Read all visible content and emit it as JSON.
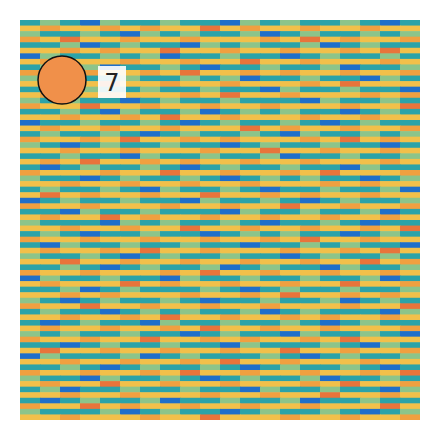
{
  "chart_data": {
    "type": "heatmap",
    "tick_labels": false,
    "grid": false,
    "xlim": [
      0,
      20
    ],
    "ylim": [
      0,
      72
    ],
    "zlim": [
      0,
      5
    ],
    "cells": [
      [
        1,
        2,
        1,
        0,
        2,
        1,
        1,
        2,
        1,
        1,
        0,
        2,
        1,
        2,
        1,
        1,
        2,
        1,
        0,
        1
      ],
      [
        3,
        4,
        3,
        3,
        4,
        3,
        4,
        3,
        3,
        5,
        3,
        4,
        3,
        3,
        4,
        3,
        3,
        4,
        3,
        3
      ],
      [
        2,
        1,
        1,
        2,
        1,
        0,
        2,
        1,
        2,
        1,
        1,
        2,
        0,
        1,
        2,
        1,
        1,
        2,
        1,
        2
      ],
      [
        4,
        3,
        5,
        3,
        3,
        4,
        3,
        3,
        4,
        3,
        3,
        3,
        4,
        3,
        5,
        3,
        4,
        3,
        3,
        4
      ],
      [
        1,
        1,
        2,
        0,
        1,
        2,
        1,
        1,
        0,
        2,
        1,
        2,
        1,
        1,
        2,
        0,
        1,
        2,
        1,
        1
      ],
      [
        3,
        3,
        4,
        3,
        4,
        3,
        3,
        5,
        3,
        3,
        4,
        3,
        3,
        4,
        3,
        3,
        4,
        3,
        5,
        3
      ],
      [
        0,
        2,
        1,
        1,
        2,
        1,
        2,
        0,
        1,
        1,
        2,
        1,
        1,
        0,
        1,
        2,
        1,
        1,
        2,
        1
      ],
      [
        3,
        4,
        3,
        3,
        3,
        4,
        3,
        3,
        4,
        3,
        3,
        5,
        3,
        3,
        4,
        3,
        3,
        3,
        4,
        3
      ],
      [
        1,
        2,
        1,
        2,
        0,
        1,
        1,
        2,
        1,
        0,
        1,
        1,
        2,
        1,
        1,
        2,
        0,
        1,
        1,
        2
      ],
      [
        4,
        3,
        3,
        4,
        3,
        3,
        4,
        3,
        5,
        3,
        3,
        4,
        3,
        4,
        3,
        3,
        4,
        3,
        3,
        4
      ],
      [
        2,
        1,
        0,
        1,
        1,
        2,
        1,
        1,
        2,
        1,
        2,
        0,
        1,
        1,
        2,
        1,
        1,
        0,
        2,
        1
      ],
      [
        3,
        3,
        4,
        3,
        5,
        3,
        3,
        4,
        3,
        3,
        4,
        3,
        3,
        3,
        4,
        3,
        5,
        3,
        3,
        3
      ],
      [
        1,
        0,
        1,
        2,
        1,
        1,
        2,
        1,
        1,
        2,
        1,
        1,
        0,
        2,
        1,
        1,
        2,
        1,
        1,
        0
      ],
      [
        3,
        4,
        3,
        3,
        4,
        3,
        3,
        3,
        4,
        3,
        5,
        3,
        3,
        4,
        3,
        3,
        3,
        4,
        3,
        4
      ],
      [
        2,
        1,
        2,
        1,
        1,
        0,
        1,
        2,
        1,
        1,
        2,
        1,
        1,
        1,
        0,
        2,
        1,
        1,
        2,
        1
      ],
      [
        4,
        3,
        3,
        5,
        3,
        3,
        4,
        3,
        3,
        4,
        3,
        3,
        4,
        3,
        3,
        3,
        4,
        3,
        3,
        5
      ],
      [
        1,
        1,
        2,
        1,
        0,
        2,
        1,
        1,
        2,
        0,
        1,
        2,
        1,
        2,
        1,
        1,
        0,
        1,
        2,
        1
      ],
      [
        3,
        3,
        4,
        3,
        3,
        4,
        3,
        5,
        3,
        3,
        4,
        3,
        3,
        3,
        4,
        3,
        3,
        4,
        3,
        3
      ],
      [
        0,
        1,
        1,
        2,
        1,
        1,
        2,
        1,
        0,
        1,
        2,
        1,
        1,
        2,
        1,
        0,
        1,
        2,
        1,
        1
      ],
      [
        3,
        4,
        3,
        3,
        4,
        3,
        3,
        4,
        3,
        3,
        3,
        5,
        3,
        4,
        3,
        3,
        4,
        3,
        3,
        4
      ],
      [
        1,
        2,
        1,
        1,
        2,
        1,
        0,
        1,
        2,
        1,
        1,
        2,
        1,
        0,
        2,
        1,
        1,
        2,
        1,
        2
      ],
      [
        4,
        3,
        3,
        4,
        3,
        5,
        3,
        3,
        4,
        3,
        4,
        3,
        3,
        3,
        4,
        3,
        5,
        3,
        4,
        3
      ],
      [
        2,
        1,
        0,
        1,
        2,
        1,
        1,
        2,
        1,
        1,
        0,
        1,
        2,
        1,
        1,
        2,
        1,
        1,
        0,
        1
      ],
      [
        3,
        3,
        4,
        3,
        3,
        4,
        3,
        3,
        3,
        4,
        3,
        3,
        5,
        3,
        3,
        4,
        3,
        3,
        4,
        3
      ],
      [
        1,
        1,
        2,
        1,
        1,
        0,
        2,
        1,
        1,
        2,
        1,
        1,
        2,
        0,
        1,
        1,
        2,
        1,
        1,
        2
      ],
      [
        3,
        4,
        3,
        5,
        3,
        3,
        4,
        3,
        4,
        3,
        3,
        4,
        3,
        3,
        4,
        3,
        3,
        3,
        4,
        3
      ],
      [
        1,
        0,
        1,
        2,
        1,
        1,
        2,
        1,
        0,
        1,
        2,
        1,
        1,
        2,
        1,
        1,
        0,
        2,
        1,
        1
      ],
      [
        4,
        3,
        3,
        3,
        4,
        3,
        3,
        5,
        3,
        3,
        4,
        3,
        3,
        4,
        3,
        5,
        3,
        3,
        3,
        4
      ],
      [
        2,
        1,
        1,
        0,
        1,
        2,
        1,
        1,
        2,
        1,
        0,
        1,
        2,
        1,
        2,
        1,
        1,
        0,
        1,
        2
      ],
      [
        3,
        3,
        4,
        3,
        3,
        4,
        3,
        3,
        4,
        3,
        3,
        4,
        3,
        3,
        3,
        4,
        3,
        4,
        3,
        3
      ],
      [
        1,
        2,
        1,
        1,
        2,
        1,
        0,
        2,
        1,
        1,
        2,
        1,
        0,
        1,
        1,
        2,
        1,
        1,
        2,
        0
      ],
      [
        3,
        5,
        3,
        4,
        3,
        3,
        4,
        3,
        3,
        5,
        3,
        3,
        4,
        3,
        4,
        3,
        3,
        4,
        3,
        3
      ],
      [
        0,
        1,
        2,
        1,
        1,
        2,
        1,
        1,
        0,
        2,
        1,
        1,
        2,
        1,
        0,
        1,
        2,
        1,
        1,
        2
      ],
      [
        4,
        3,
        3,
        4,
        3,
        3,
        3,
        4,
        3,
        3,
        4,
        3,
        3,
        5,
        3,
        3,
        4,
        3,
        3,
        4
      ],
      [
        1,
        1,
        0,
        2,
        1,
        1,
        2,
        1,
        1,
        1,
        0,
        2,
        1,
        1,
        2,
        1,
        1,
        2,
        0,
        1
      ],
      [
        3,
        4,
        3,
        3,
        5,
        3,
        4,
        3,
        3,
        4,
        3,
        3,
        4,
        3,
        3,
        4,
        3,
        3,
        4,
        3
      ],
      [
        2,
        1,
        1,
        1,
        0,
        2,
        1,
        2,
        1,
        1,
        2,
        1,
        0,
        1,
        1,
        2,
        1,
        0,
        1,
        1
      ],
      [
        3,
        3,
        4,
        3,
        3,
        4,
        3,
        3,
        5,
        3,
        3,
        4,
        3,
        3,
        4,
        3,
        3,
        4,
        3,
        5
      ],
      [
        1,
        2,
        1,
        0,
        1,
        1,
        2,
        1,
        1,
        0,
        1,
        2,
        1,
        2,
        1,
        1,
        0,
        1,
        2,
        1
      ],
      [
        4,
        3,
        3,
        4,
        3,
        3,
        4,
        3,
        3,
        4,
        3,
        3,
        4,
        3,
        5,
        3,
        3,
        4,
        3,
        3
      ],
      [
        1,
        0,
        2,
        1,
        1,
        2,
        1,
        1,
        2,
        1,
        1,
        0,
        1,
        1,
        2,
        1,
        2,
        1,
        1,
        0
      ],
      [
        3,
        4,
        3,
        3,
        4,
        3,
        5,
        3,
        3,
        4,
        3,
        3,
        3,
        4,
        3,
        3,
        4,
        3,
        5,
        3
      ],
      [
        2,
        1,
        1,
        2,
        1,
        0,
        1,
        2,
        1,
        1,
        2,
        1,
        1,
        0,
        1,
        2,
        1,
        1,
        2,
        1
      ],
      [
        3,
        3,
        5,
        3,
        3,
        4,
        3,
        3,
        4,
        3,
        3,
        4,
        3,
        3,
        4,
        3,
        3,
        5,
        3,
        4
      ],
      [
        1,
        1,
        2,
        1,
        0,
        1,
        2,
        1,
        1,
        2,
        0,
        1,
        2,
        1,
        1,
        0,
        2,
        1,
        1,
        2
      ],
      [
        4,
        3,
        3,
        4,
        3,
        3,
        3,
        4,
        3,
        5,
        3,
        3,
        4,
        3,
        3,
        4,
        3,
        3,
        4,
        3
      ],
      [
        0,
        2,
        1,
        1,
        2,
        1,
        1,
        0,
        2,
        1,
        1,
        2,
        1,
        1,
        2,
        1,
        1,
        2,
        0,
        1
      ],
      [
        3,
        4,
        3,
        3,
        3,
        5,
        3,
        4,
        3,
        3,
        4,
        3,
        3,
        4,
        3,
        3,
        5,
        3,
        3,
        4
      ],
      [
        1,
        1,
        2,
        0,
        1,
        2,
        1,
        1,
        1,
        2,
        1,
        0,
        1,
        2,
        1,
        1,
        2,
        1,
        1,
        2
      ],
      [
        3,
        3,
        4,
        3,
        4,
        3,
        3,
        3,
        4,
        3,
        3,
        4,
        3,
        5,
        3,
        3,
        4,
        3,
        4,
        3
      ],
      [
        2,
        1,
        0,
        1,
        2,
        1,
        1,
        2,
        1,
        0,
        1,
        1,
        2,
        1,
        1,
        2,
        0,
        1,
        2,
        1
      ],
      [
        4,
        3,
        3,
        5,
        3,
        3,
        4,
        3,
        3,
        4,
        3,
        3,
        4,
        3,
        3,
        3,
        4,
        3,
        3,
        5
      ],
      [
        1,
        2,
        1,
        1,
        0,
        1,
        2,
        1,
        2,
        1,
        1,
        2,
        0,
        1,
        2,
        1,
        1,
        1,
        0,
        2
      ],
      [
        3,
        3,
        4,
        3,
        3,
        4,
        3,
        5,
        3,
        3,
        4,
        3,
        3,
        4,
        3,
        4,
        3,
        3,
        4,
        3
      ],
      [
        1,
        0,
        1,
        2,
        1,
        1,
        0,
        2,
        1,
        1,
        2,
        1,
        1,
        2,
        1,
        0,
        1,
        2,
        1,
        1
      ],
      [
        3,
        4,
        3,
        3,
        4,
        3,
        3,
        4,
        3,
        5,
        3,
        3,
        4,
        3,
        3,
        4,
        3,
        3,
        3,
        4
      ],
      [
        2,
        1,
        2,
        1,
        1,
        2,
        1,
        1,
        0,
        1,
        2,
        1,
        1,
        0,
        2,
        1,
        1,
        2,
        1,
        0
      ],
      [
        4,
        3,
        3,
        4,
        3,
        3,
        5,
        3,
        3,
        4,
        3,
        4,
        3,
        3,
        4,
        3,
        5,
        3,
        3,
        3
      ],
      [
        1,
        1,
        0,
        1,
        2,
        1,
        1,
        2,
        1,
        1,
        0,
        2,
        1,
        1,
        1,
        2,
        1,
        0,
        2,
        1
      ],
      [
        3,
        5,
        3,
        3,
        4,
        3,
        3,
        4,
        3,
        3,
        4,
        3,
        3,
        5,
        3,
        3,
        4,
        3,
        3,
        4
      ],
      [
        0,
        2,
        1,
        1,
        1,
        2,
        0,
        1,
        2,
        1,
        1,
        1,
        2,
        1,
        0,
        1,
        2,
        1,
        1,
        2
      ],
      [
        3,
        3,
        4,
        3,
        3,
        4,
        3,
        3,
        4,
        3,
        5,
        3,
        3,
        4,
        3,
        3,
        3,
        4,
        3,
        3
      ],
      [
        1,
        1,
        2,
        1,
        0,
        1,
        2,
        1,
        1,
        2,
        1,
        0,
        1,
        2,
        1,
        1,
        2,
        1,
        0,
        1
      ],
      [
        4,
        3,
        3,
        4,
        3,
        3,
        4,
        3,
        5,
        3,
        3,
        4,
        3,
        3,
        4,
        3,
        3,
        4,
        3,
        5
      ],
      [
        2,
        1,
        1,
        0,
        2,
        1,
        1,
        2,
        1,
        0,
        1,
        2,
        1,
        1,
        2,
        0,
        1,
        1,
        2,
        1
      ],
      [
        3,
        4,
        3,
        3,
        5,
        3,
        3,
        4,
        3,
        3,
        4,
        3,
        3,
        3,
        4,
        3,
        5,
        3,
        3,
        4
      ],
      [
        1,
        2,
        0,
        1,
        1,
        2,
        1,
        1,
        2,
        1,
        1,
        0,
        2,
        1,
        1,
        2,
        1,
        1,
        0,
        2
      ],
      [
        3,
        3,
        4,
        3,
        3,
        4,
        3,
        3,
        3,
        4,
        3,
        3,
        4,
        3,
        3,
        5,
        3,
        3,
        4,
        3
      ],
      [
        1,
        0,
        1,
        2,
        1,
        1,
        2,
        0,
        1,
        1,
        2,
        1,
        1,
        2,
        0,
        1,
        1,
        2,
        1,
        1
      ],
      [
        4,
        3,
        3,
        5,
        3,
        4,
        3,
        3,
        4,
        3,
        3,
        4,
        3,
        3,
        4,
        3,
        3,
        3,
        5,
        3
      ],
      [
        2,
        1,
        1,
        1,
        2,
        0,
        1,
        2,
        1,
        1,
        0,
        1,
        2,
        1,
        1,
        2,
        1,
        0,
        1,
        2
      ],
      [
        3,
        3,
        4,
        3,
        3,
        3,
        4,
        3,
        3,
        5,
        3,
        3,
        3,
        4,
        3,
        3,
        4,
        3,
        3,
        4
      ]
    ],
    "annotations": [
      {
        "x": 2.1,
        "y": 10.8,
        "text": "7"
      }
    ]
  }
}
